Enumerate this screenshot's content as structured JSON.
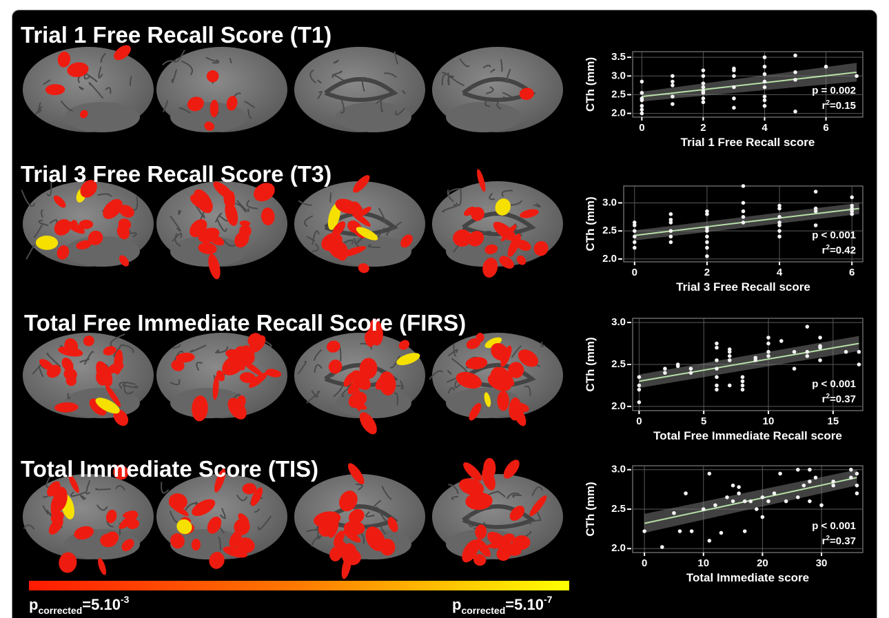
{
  "chart_data": [
    {
      "type": "scatter",
      "title": "Trial 1 Free Recall Score (T1)",
      "xlabel": "Trial 1 Free Recall score",
      "ylabel": "CTh (mm)",
      "x": [
        0,
        0,
        0,
        0,
        0,
        0,
        0,
        1,
        1,
        1,
        1,
        1,
        2,
        2,
        2,
        2,
        2,
        2,
        2,
        2,
        3,
        3,
        3,
        3,
        3,
        3,
        4,
        4,
        4,
        4,
        4,
        4,
        4,
        4,
        5,
        5,
        5,
        5,
        6,
        7
      ],
      "values": [
        2.0,
        2.1,
        2.2,
        2.35,
        2.4,
        2.55,
        2.85,
        2.25,
        2.45,
        2.75,
        2.85,
        3.0,
        2.3,
        2.4,
        2.55,
        2.6,
        2.7,
        2.8,
        3.0,
        3.15,
        2.15,
        2.4,
        2.7,
        3.0,
        3.15,
        3.2,
        2.2,
        2.35,
        2.45,
        2.7,
        2.85,
        3.05,
        3.25,
        3.5,
        2.05,
        2.9,
        3.1,
        3.55,
        3.25,
        3.0
      ],
      "color": "#f2f2f2",
      "fit": {
        "x": [
          0,
          7
        ],
        "y": [
          2.45,
          3.1
        ],
        "lower": [
          2.32,
          2.85
        ],
        "upper": [
          2.58,
          3.35
        ],
        "color": "#b7e0a8"
      },
      "xlim": [
        -0.3,
        7.2
      ],
      "ylim": [
        1.9,
        3.65
      ],
      "xticks": [
        0,
        2,
        4,
        6
      ],
      "yticks": [
        {
          "value": 2,
          "label": "2.0"
        },
        2.5,
        {
          "value": 3,
          "label": "3.0"
        },
        3.5
      ],
      "grid": true,
      "p_text": "p = 0.002",
      "r2": {
        "base": "r",
        "sup": "2",
        "text": "=0.15"
      }
    },
    {
      "type": "scatter",
      "title": "Trial 3 Free Recall Score (T3)",
      "xlabel": "Trial 3 Free Recall score",
      "ylabel": "CTh (mm)",
      "x": [
        0,
        0,
        0,
        0,
        0,
        0,
        1,
        1,
        1,
        1,
        1,
        1,
        2,
        2,
        2,
        2,
        2,
        2,
        2,
        2,
        3,
        3,
        3,
        3,
        3,
        4,
        4,
        4,
        4,
        4,
        4,
        4,
        5,
        5,
        5,
        5,
        6,
        6,
        6,
        6,
        6
      ],
      "values": [
        2.2,
        2.3,
        2.4,
        2.5,
        2.6,
        2.65,
        2.3,
        2.4,
        2.5,
        2.65,
        2.7,
        2.8,
        2.05,
        2.2,
        2.3,
        2.4,
        2.5,
        2.55,
        2.8,
        2.85,
        2.65,
        2.75,
        2.85,
        3.0,
        3.3,
        2.4,
        2.5,
        2.6,
        2.65,
        2.75,
        2.9,
        2.95,
        2.6,
        2.85,
        2.9,
        3.2,
        2.8,
        2.85,
        2.9,
        2.95,
        3.1
      ],
      "color": "#f2f2f2",
      "fit": {
        "x": [
          0,
          6.2
        ],
        "y": [
          2.42,
          2.9
        ],
        "lower": [
          2.33,
          2.8
        ],
        "upper": [
          2.51,
          3.0
        ],
        "color": "#b7e0a8"
      },
      "xlim": [
        -0.3,
        6.3
      ],
      "ylim": [
        1.95,
        3.3
      ],
      "xticks": [
        0,
        2,
        4,
        6
      ],
      "yticks": [
        {
          "value": 2,
          "label": "2.0"
        },
        2.5,
        {
          "value": 3,
          "label": "3.0"
        }
      ],
      "grid": true,
      "p_text": "p < 0.001",
      "r2": {
        "base": "r",
        "sup": "2",
        "text": "=0.42"
      }
    },
    {
      "type": "scatter",
      "title": "Total Free Immediate Recall Score (FIRS)",
      "xlabel": "Total Free Immediate Recall score",
      "ylabel": "CTh (mm)",
      "x": [
        0,
        0,
        0,
        0,
        2,
        2,
        3,
        3,
        4,
        4,
        6,
        6,
        6,
        6,
        6,
        6,
        6,
        7,
        7,
        7,
        7,
        7,
        8,
        8,
        8,
        8,
        9,
        9,
        10,
        10,
        10,
        10,
        11,
        12,
        12,
        13,
        13,
        13,
        14,
        14,
        14,
        14,
        16,
        17,
        17
      ],
      "values": [
        2.05,
        2.2,
        2.25,
        2.35,
        2.4,
        2.45,
        2.5,
        2.48,
        2.4,
        2.45,
        2.2,
        2.25,
        2.35,
        2.45,
        2.55,
        2.7,
        2.75,
        2.25,
        2.55,
        2.6,
        2.65,
        2.68,
        2.2,
        2.25,
        2.3,
        2.35,
        2.55,
        2.58,
        2.6,
        2.65,
        2.75,
        2.82,
        2.78,
        2.45,
        2.65,
        2.6,
        2.65,
        2.95,
        2.55,
        2.7,
        2.72,
        2.82,
        2.65,
        2.5,
        2.65
      ],
      "color": "#f2f2f2",
      "fit": {
        "x": [
          0,
          17
        ],
        "y": [
          2.3,
          2.75
        ],
        "lower": [
          2.22,
          2.66
        ],
        "upper": [
          2.38,
          2.84
        ],
        "color": "#b7e0a8"
      },
      "xlim": [
        -0.5,
        17.3
      ],
      "ylim": [
        1.95,
        3.05
      ],
      "xticks": [
        0,
        5,
        10,
        15
      ],
      "yticks": [
        {
          "value": 2,
          "label": "2.0"
        },
        2.5,
        {
          "value": 3,
          "label": "3.0"
        }
      ],
      "grid": true,
      "p_text": "p < 0.001",
      "r2": {
        "base": "r",
        "sup": "2",
        "text": "=0.37"
      }
    },
    {
      "type": "scatter",
      "title": "Total Immediate Score (TIS)",
      "xlabel": "Total Immediate score",
      "ylabel": "CTh (mm)",
      "x": [
        0,
        3,
        5,
        6,
        7,
        8,
        10,
        11,
        11,
        12,
        13,
        14,
        15,
        15,
        16,
        16,
        17,
        17,
        18,
        19,
        20,
        20,
        21,
        22,
        23,
        24,
        26,
        26,
        27,
        28,
        28,
        28,
        29,
        30,
        32,
        32,
        35,
        35,
        36,
        36,
        36
      ],
      "values": [
        2.22,
        2.02,
        2.45,
        2.22,
        2.7,
        2.22,
        2.5,
        2.1,
        2.95,
        2.55,
        2.2,
        2.65,
        2.6,
        2.8,
        2.7,
        2.78,
        2.22,
        2.6,
        2.6,
        2.5,
        2.4,
        2.65,
        2.6,
        2.7,
        2.95,
        2.6,
        3.0,
        2.65,
        2.8,
        2.6,
        2.85,
        3.0,
        2.9,
        2.55,
        2.8,
        2.85,
        2.9,
        3.0,
        2.7,
        2.8,
        2.95
      ],
      "color": "#f2f2f2",
      "fit": {
        "x": [
          0,
          36
        ],
        "y": [
          2.32,
          2.9
        ],
        "lower": [
          2.2,
          2.8
        ],
        "upper": [
          2.44,
          3.0
        ],
        "color": "#b7e0a8"
      },
      "xlim": [
        -2,
        37
      ],
      "ylim": [
        1.95,
        3.05
      ],
      "xticks": [
        0,
        10,
        20,
        30
      ],
      "yticks": [
        {
          "value": 2,
          "label": "2.0"
        },
        2.5,
        {
          "value": 3,
          "label": "3.0"
        }
      ],
      "grid": true,
      "p_text": "p < 0.001",
      "r2": {
        "base": "r",
        "sup": "2",
        "text": "=0.37"
      }
    }
  ],
  "colorbar": {
    "low": {
      "base": "p",
      "sub": "corrected",
      "text": "=5.10",
      "sup": "-3"
    },
    "high": {
      "base": "p",
      "sub": "corrected",
      "text": "=5.10",
      "sup": "-7"
    }
  }
}
